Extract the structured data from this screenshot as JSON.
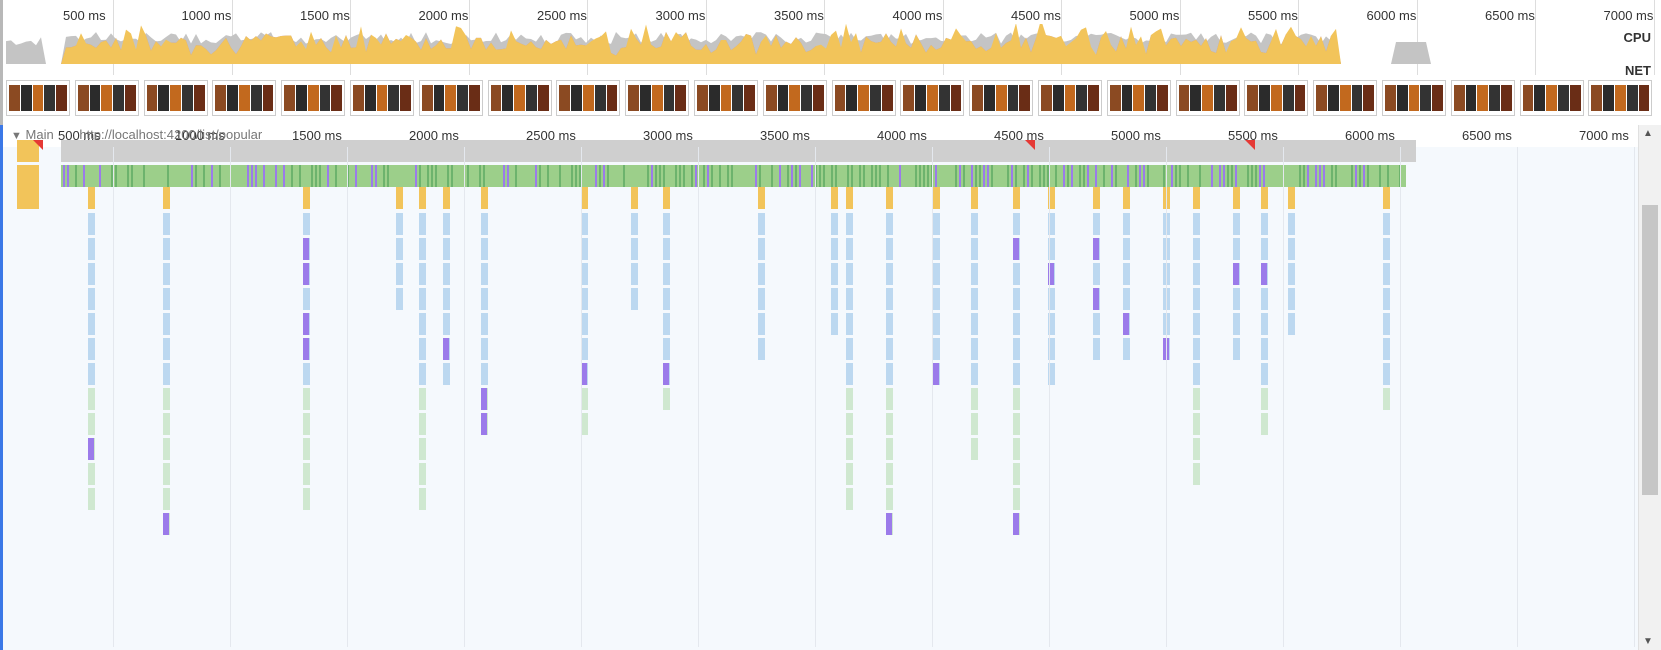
{
  "time_ticks": [
    "500 ms",
    "1000 ms",
    "1500 ms",
    "2000 ms",
    "2500 ms",
    "3000 ms",
    "3500 ms",
    "4000 ms",
    "4500 ms",
    "5000 ms",
    "5500 ms",
    "6000 ms",
    "6500 ms",
    "7000 ms"
  ],
  "overview": {
    "cpu_label": "CPU",
    "net_label": "NET"
  },
  "thread": {
    "name": "Main",
    "url": "http://localhost:4200/list/popular",
    "expanded_icon": "triangle-down-icon"
  },
  "colors": {
    "scripting": "#f2c45a",
    "rendering": "#9b7bea",
    "painting": "#6db36d",
    "system": "#c8c8c8",
    "idle_bg": "#f5f9fd",
    "warning": "#e53935"
  }
}
